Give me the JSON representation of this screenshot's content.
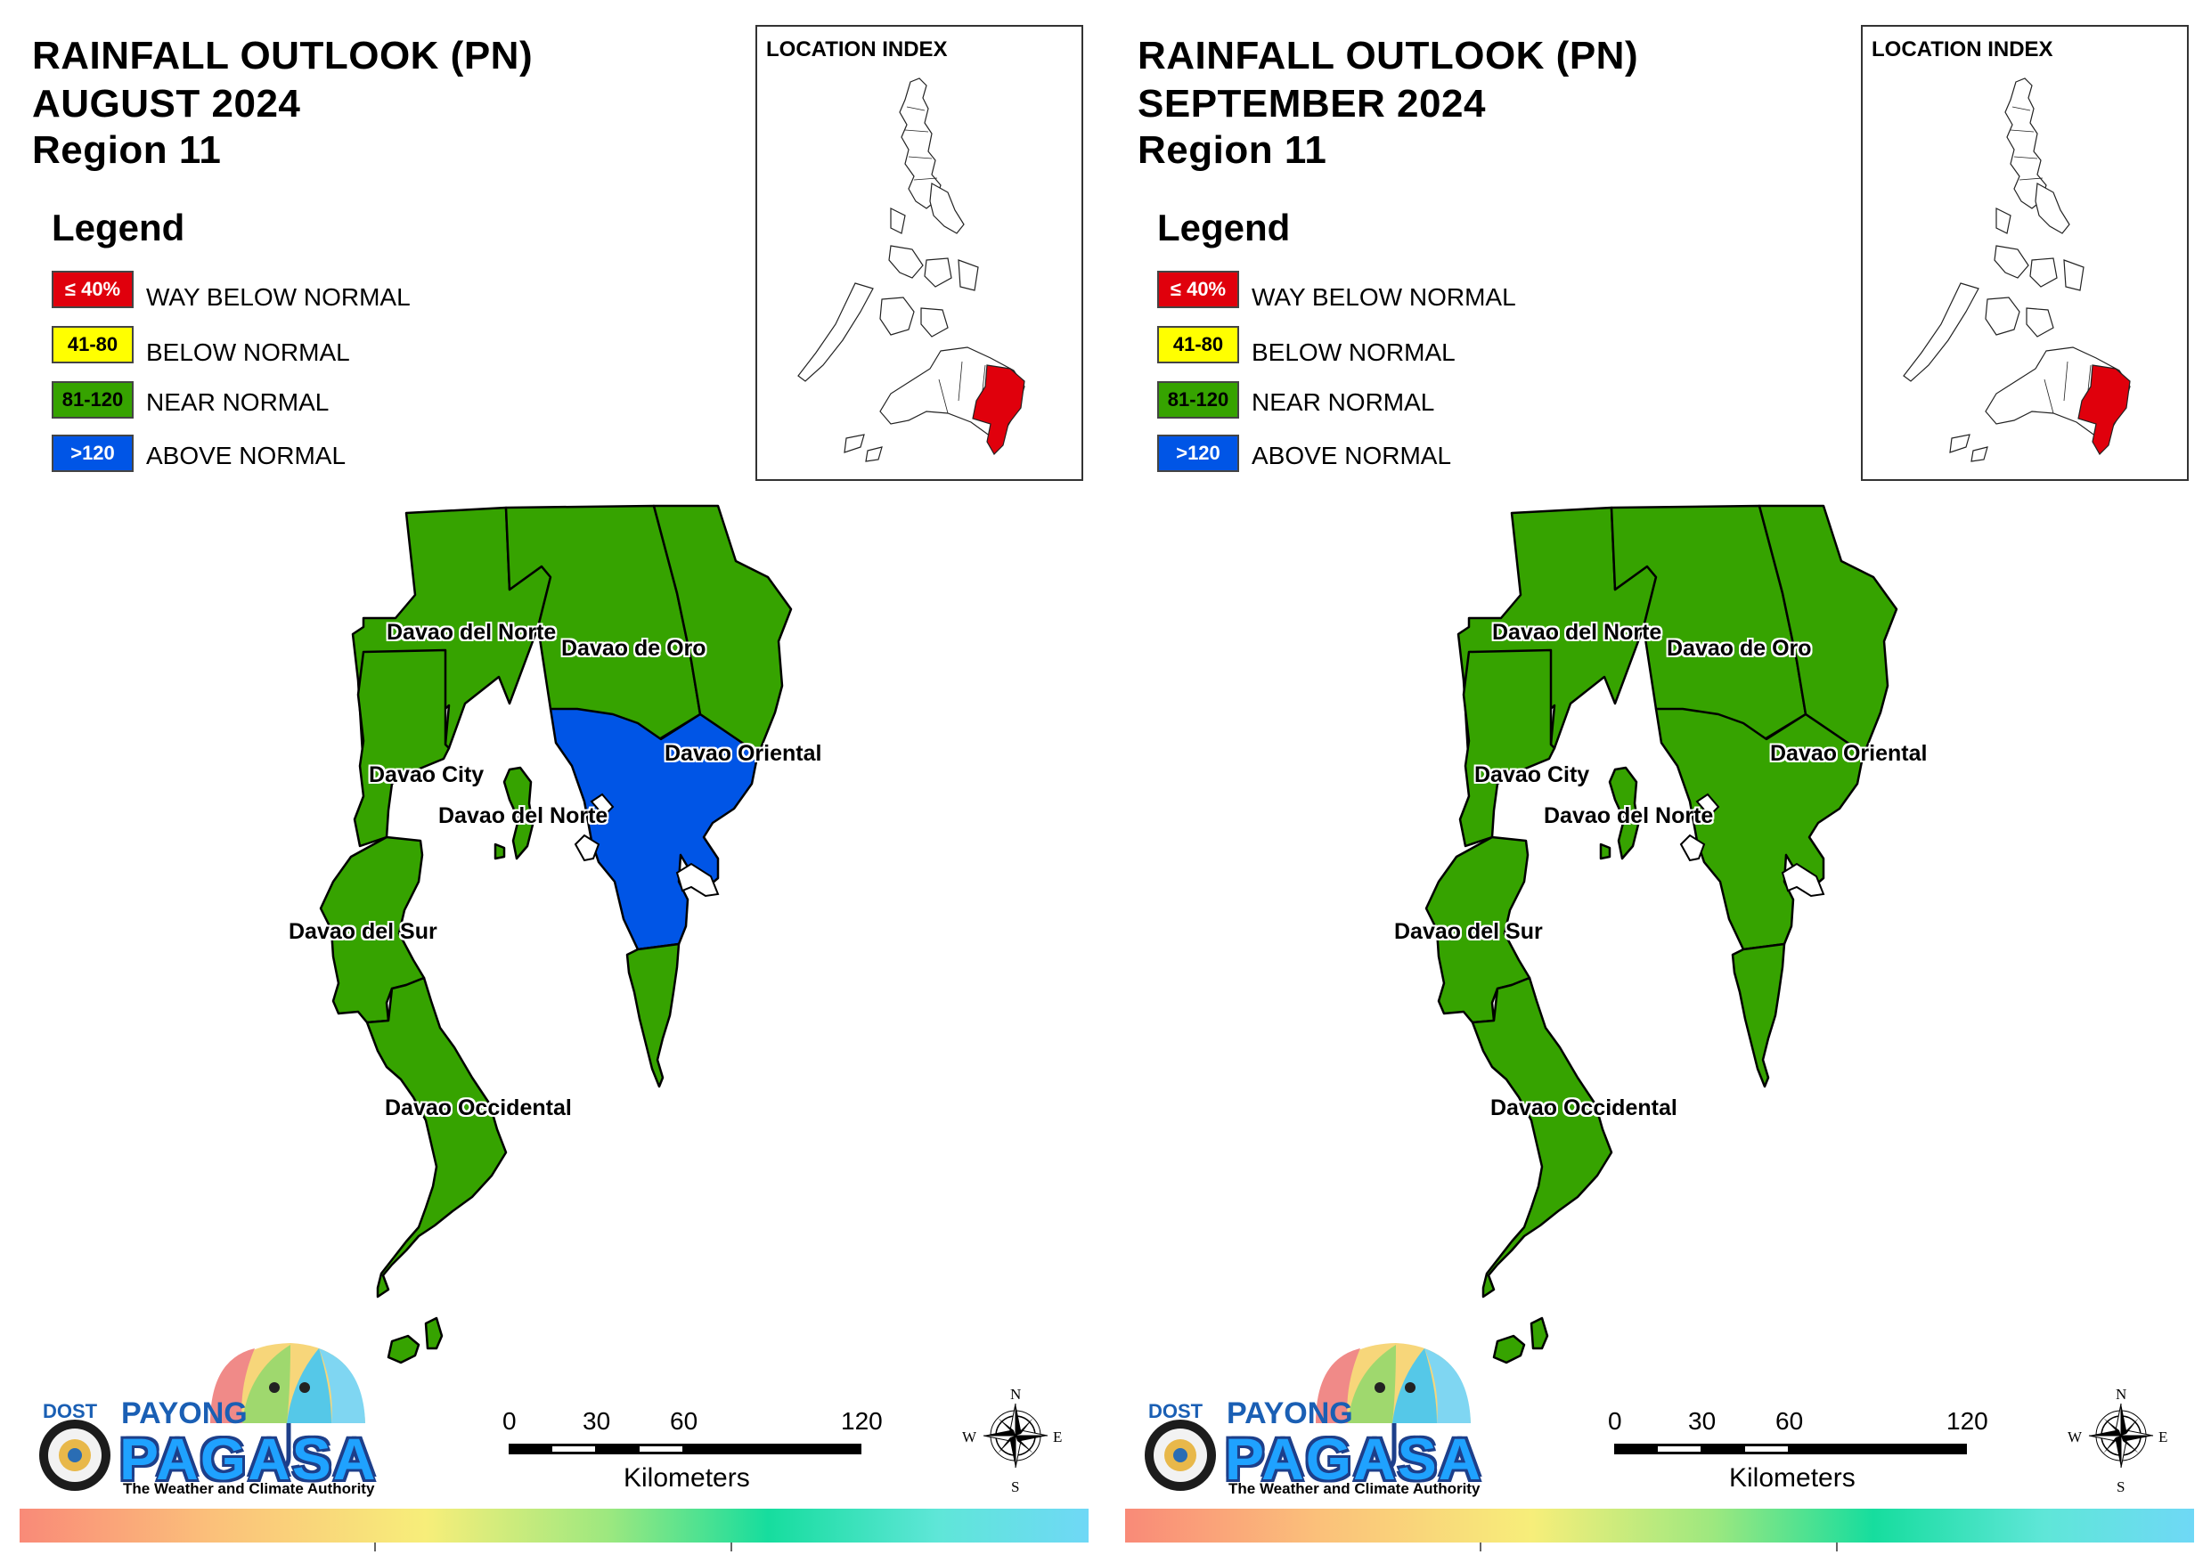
{
  "panels": [
    {
      "title_lines": [
        "RAINFALL OUTLOOK (PN)",
        "AUGUST 2024",
        "Region 11"
      ],
      "period": "AUGUST 2024",
      "province_categories": {
        "davao_del_norte": "near_normal",
        "davao_de_oro": "near_normal",
        "davao_oriental_north": "near_normal",
        "davao_oriental_central": "above_normal",
        "davao_oriental_south": "near_normal",
        "davao_city": "near_normal",
        "davao_del_sur": "near_normal",
        "davao_occidental": "near_normal"
      }
    },
    {
      "title_lines": [
        "RAINFALL OUTLOOK (PN)",
        "SEPTEMBER 2024",
        "Region 11"
      ],
      "period": "SEPTEMBER 2024",
      "province_categories": {
        "davao_del_norte": "near_normal",
        "davao_de_oro": "near_normal",
        "davao_oriental_north": "near_normal",
        "davao_oriental_central": "near_normal",
        "davao_oriental_south": "near_normal",
        "davao_city": "near_normal",
        "davao_del_sur": "near_normal",
        "davao_occidental": "near_normal"
      }
    }
  ],
  "legend": {
    "title": "Legend",
    "items": [
      {
        "key": "way_below_normal",
        "range": "≤ 40%",
        "label": "WAY BELOW NORMAL",
        "color": "#e0000c",
        "text_color": "#ffffff"
      },
      {
        "key": "below_normal",
        "range": "41-80",
        "label": "BELOW NORMAL",
        "color": "#ffff00",
        "text_color": "#000000"
      },
      {
        "key": "near_normal",
        "range": "81-120",
        "label": "NEAR NORMAL",
        "color": "#36a300",
        "text_color": "#000000"
      },
      {
        "key": "above_normal",
        "range": ">120",
        "label": "ABOVE NORMAL",
        "color": "#0055e6",
        "text_color": "#ffffff"
      }
    ]
  },
  "location_index": {
    "title": "LOCATION INDEX",
    "highlight_color": "#e0000c"
  },
  "province_labels": {
    "davao_del_norte_top": "Davao del Norte",
    "davao_de_oro": "Davao de Oro",
    "davao_oriental": "Davao Oriental",
    "davao_city": "Davao City",
    "davao_del_norte_island": "Davao del Norte",
    "davao_del_sur": "Davao del Sur",
    "davao_occidental": "Davao Occidental"
  },
  "scale_bar": {
    "ticks": [
      "0",
      "30",
      "60",
      "120"
    ],
    "unit": "Kilometers"
  },
  "compass": {
    "n": "N",
    "s": "S",
    "e": "E",
    "w": "W"
  },
  "logo": {
    "dost": "DOST",
    "payong": "PAYONG",
    "pagasa": "PAGASA",
    "tagline": "The Weather and Climate Authority"
  }
}
